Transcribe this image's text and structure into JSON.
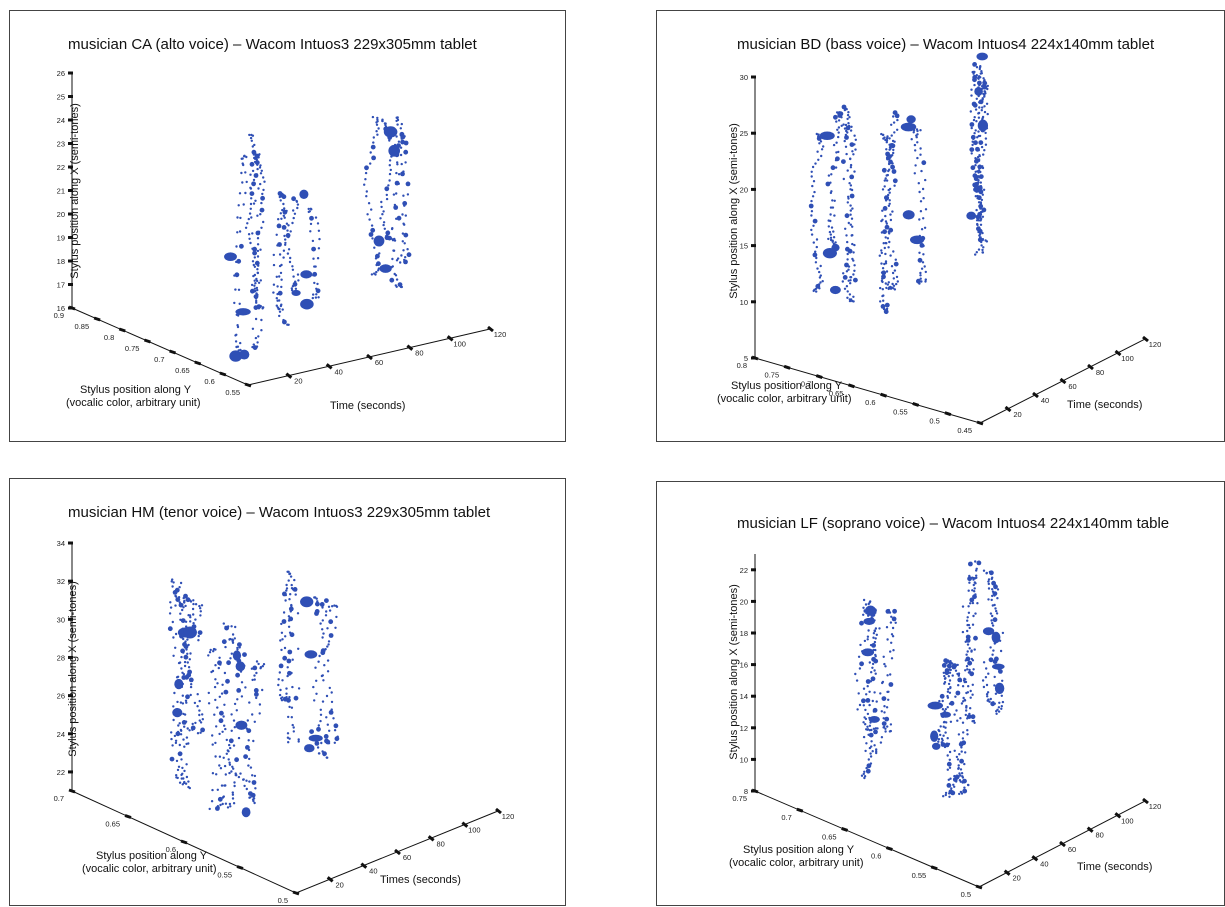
{
  "chart_data": [
    {
      "type": "scatter",
      "projection": "3d",
      "title": "musician CA (alto voice) –  Wacom Intuos3 229x305mm tablet",
      "xlabel": "Time (seconds)",
      "ylabel_lines": [
        "Stylus position along Y",
        "(vocalic color, arbitrary unit)"
      ],
      "zlabel": "Stylus position along X (semi-tones)",
      "z_ticks": [
        "16",
        "17",
        "18",
        "19",
        "20",
        "21",
        "22",
        "23",
        "24",
        "25",
        "26"
      ],
      "z_range": [
        16,
        26
      ],
      "y_ticks": [
        "0.9",
        "0.85",
        "0.8",
        "0.75",
        "0.7",
        "0.65",
        "0.6",
        "0.55"
      ],
      "y_range": [
        0.9,
        0.55
      ],
      "x_ticks": [
        "20",
        "40",
        "60",
        "80",
        "100",
        "120"
      ],
      "x_range": [
        0,
        120
      ],
      "marker_color": "#2f4fb5",
      "clusters": [
        {
          "t": 12,
          "yv": 0.62,
          "z": [
            16.3,
            25.8
          ],
          "spread": 4,
          "n": 170
        },
        {
          "t": 48,
          "yv": 0.64,
          "z": [
            16.3,
            22.5
          ],
          "spread": 4,
          "n": 120
        },
        {
          "t": 95,
          "yv": 0.66,
          "z": [
            17.0,
            24.5
          ],
          "spread": 5,
          "n": 170
        }
      ]
    },
    {
      "type": "scatter",
      "projection": "3d",
      "title": "musician BD (bass voice) – Wacom Intuos4 224x140mm tablet",
      "xlabel": "Time (seconds)",
      "ylabel_lines": [
        "Stylus position along Y",
        "(vocalic color, arbitrary unit)"
      ],
      "zlabel": "Stylus position along X (semi-tones)",
      "z_ticks": [
        "5",
        "10",
        "15",
        "20",
        "25",
        "30"
      ],
      "z_range": [
        5,
        30
      ],
      "y_ticks": [
        "0.8",
        "0.75",
        "0.7",
        "0.65",
        "0.6",
        "0.55",
        "0.5",
        "0.45"
      ],
      "y_range": [
        0.8,
        0.45
      ],
      "x_ticks": [
        "20",
        "40",
        "60",
        "80",
        "100",
        "120"
      ],
      "x_range": [
        0,
        120
      ],
      "marker_color": "#2f4fb5",
      "clusters": [
        {
          "t": 10,
          "yv": 0.7,
          "z": [
            10.0,
            30.0
          ],
          "spread": 6,
          "n": 200
        },
        {
          "t": 48,
          "yv": 0.66,
          "z": [
            8.5,
            27.0
          ],
          "spread": 6,
          "n": 200
        },
        {
          "t": 95,
          "yv": 0.66,
          "z": [
            10.0,
            29.0
          ],
          "spread": 6,
          "n": 220
        }
      ]
    },
    {
      "type": "scatter",
      "projection": "3d",
      "title": "musician HM (tenor voice) – Wacom Intuos3 229x305mm tablet",
      "xlabel": "Times (seconds)",
      "ylabel_lines": [
        "Stylus position along Y",
        "(vocalic color, arbitrary unit)"
      ],
      "zlabel": "Stylus position along X (semi-tones)",
      "z_ticks": [
        "22",
        "24",
        "26",
        "28",
        "30",
        "32",
        "34"
      ],
      "z_range": [
        21,
        34
      ],
      "y_ticks": [
        "0.7",
        "0.65",
        "0.6",
        "0.55",
        "0.5"
      ],
      "y_range": [
        0.7,
        0.5
      ],
      "x_ticks": [
        "20",
        "40",
        "60",
        "80",
        "100",
        "120"
      ],
      "x_range": [
        0,
        120
      ],
      "marker_color": "#2f4fb5",
      "clusters": [
        {
          "t": 12,
          "yv": 0.62,
          "z": [
            22.0,
            34.0
          ],
          "spread": 5,
          "n": 190
        },
        {
          "t": 50,
          "yv": 0.62,
          "z": [
            20.0,
            30.0
          ],
          "spread": 6,
          "n": 190
        },
        {
          "t": 95,
          "yv": 0.63,
          "z": [
            21.5,
            31.0
          ],
          "spread": 5,
          "n": 170
        }
      ]
    },
    {
      "type": "scatter",
      "projection": "3d",
      "title": "musician LF (soprano voice) – Wacom Intuos4 224x140mm table",
      "xlabel": "Time (seconds)",
      "ylabel_lines": [
        "Stylus position along Y",
        "(vocalic color, arbitrary unit)"
      ],
      "zlabel": "Stylus position along X (semi-tones)",
      "z_ticks": [
        "8",
        "10",
        "12",
        "14",
        "16",
        "18",
        "20",
        "22"
      ],
      "z_range": [
        8,
        23
      ],
      "y_ticks": [
        "0.75",
        "0.7",
        "0.65",
        "0.6",
        "0.55",
        "0.5"
      ],
      "y_range": [
        0.75,
        0.5
      ],
      "x_ticks": [
        "20",
        "40",
        "60",
        "80",
        "100",
        "120"
      ],
      "x_range": [
        0,
        120
      ],
      "marker_color": "#2f4fb5",
      "clusters": [
        {
          "t": 12,
          "yv": 0.64,
          "z": [
            10.5,
            22.5
          ],
          "spread": 5,
          "n": 180
        },
        {
          "t": 50,
          "yv": 0.62,
          "z": [
            8.5,
            18.0
          ],
          "spread": 5,
          "n": 170
        },
        {
          "t": 95,
          "yv": 0.63,
          "z": [
            10.0,
            21.5
          ],
          "spread": 5,
          "n": 170
        }
      ]
    }
  ]
}
